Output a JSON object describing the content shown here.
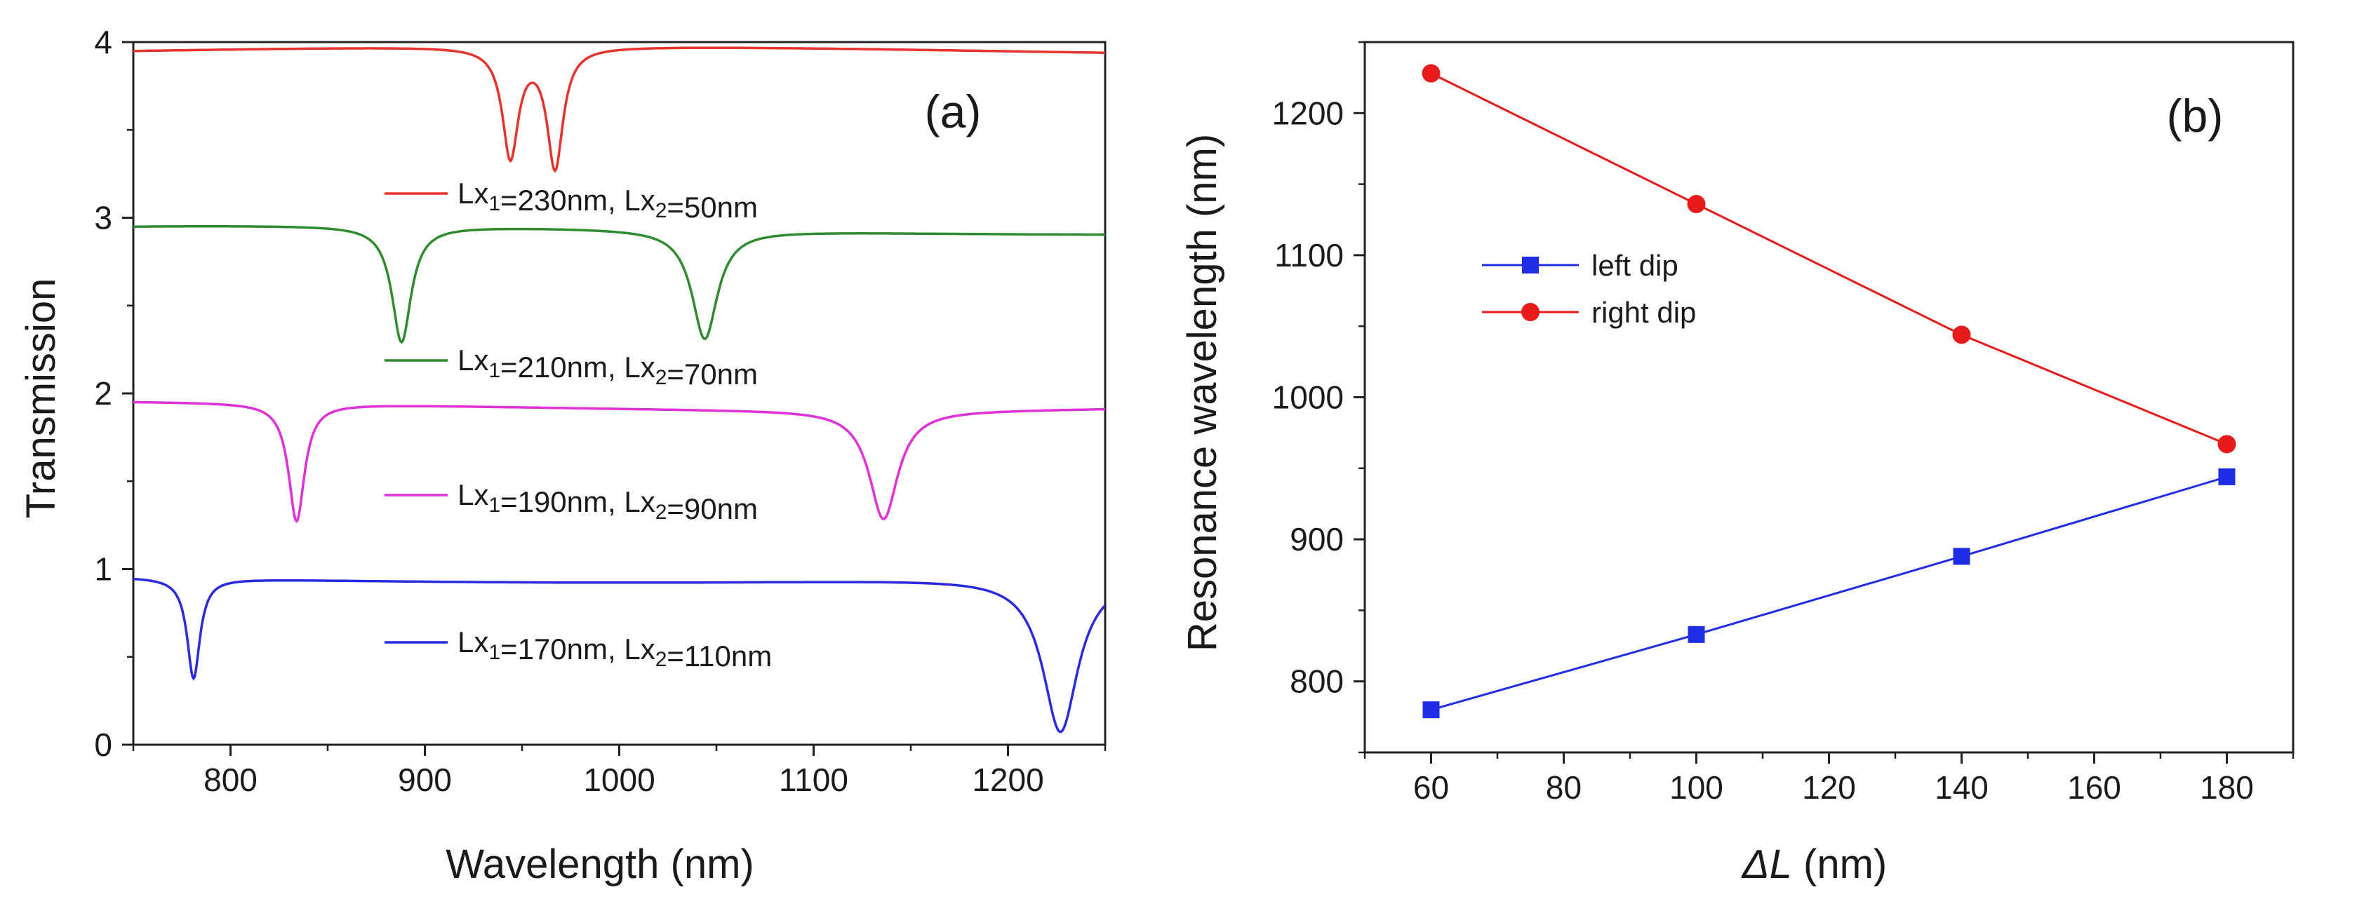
{
  "chart_data": [
    {
      "type": "line",
      "panel_label": "(a)",
      "xlabel": "Wavelength (nm)",
      "ylabel": "Transmission",
      "xlim": [
        750,
        1250
      ],
      "ylim": [
        0,
        4
      ],
      "xticks": [
        800,
        900,
        1000,
        1100,
        1200
      ],
      "yticks": [
        0,
        1,
        2,
        3,
        4
      ],
      "series": [
        {
          "name_main": "Lx",
          "sub1": "1",
          "mid": "=230nm, Lx",
          "sub2": "2",
          "tail": "=50nm",
          "color": "#e8322e",
          "offset": 3,
          "base": 0.95,
          "dips": [
            {
              "center": 944,
              "depth": 0.62,
              "width": 5
            },
            {
              "center": 967,
              "depth": 0.68,
              "width": 5
            }
          ]
        },
        {
          "name_main": "Lx",
          "sub1": "1",
          "mid": "=210nm, Lx",
          "sub2": "2",
          "tail": "=70nm",
          "color": "#2e8b2e",
          "offset": 2,
          "base": 0.93,
          "dips": [
            {
              "center": 888,
              "depth": 0.66,
              "width": 6
            },
            {
              "center": 1044,
              "depth": 0.62,
              "width": 8
            }
          ]
        },
        {
          "name_main": "Lx",
          "sub1": "1",
          "mid": "=190nm, Lx",
          "sub2": "2",
          "tail": "=90nm",
          "color": "#e030d8",
          "offset": 1,
          "base": 0.93,
          "dips": [
            {
              "center": 834,
              "depth": 0.67,
              "width": 5
            },
            {
              "center": 1136,
              "depth": 0.62,
              "width": 9
            }
          ]
        },
        {
          "name_main": "Lx",
          "sub1": "1",
          "mid": "=170nm, Lx",
          "sub2": "2",
          "tail": "=110nm",
          "color": "#2a2ae0",
          "offset": 0,
          "base": 0.95,
          "dips": [
            {
              "center": 781,
              "depth": 0.57,
              "width": 4
            },
            {
              "center": 1227,
              "depth": 0.88,
              "width": 11
            }
          ]
        }
      ]
    },
    {
      "type": "line",
      "panel_label": "(b)",
      "xlabel_sym": "ΔL",
      "xlabel_unit": " (nm)",
      "ylabel": "Resonance wavelength (nm)",
      "xlim": [
        50,
        190
      ],
      "ylim": [
        750,
        1250
      ],
      "xticks": [
        60,
        80,
        100,
        120,
        140,
        160,
        180
      ],
      "yticks": [
        800,
        900,
        1000,
        1100,
        1200
      ],
      "x": [
        60,
        100,
        140,
        180
      ],
      "series": [
        {
          "name": "left dip",
          "marker": "square",
          "color": "#1f2ee6",
          "values": [
            780,
            833,
            888,
            944
          ]
        },
        {
          "name": "right dip",
          "marker": "circle",
          "color": "#e81a1a",
          "values": [
            1228,
            1136,
            1044,
            967
          ]
        }
      ]
    }
  ]
}
